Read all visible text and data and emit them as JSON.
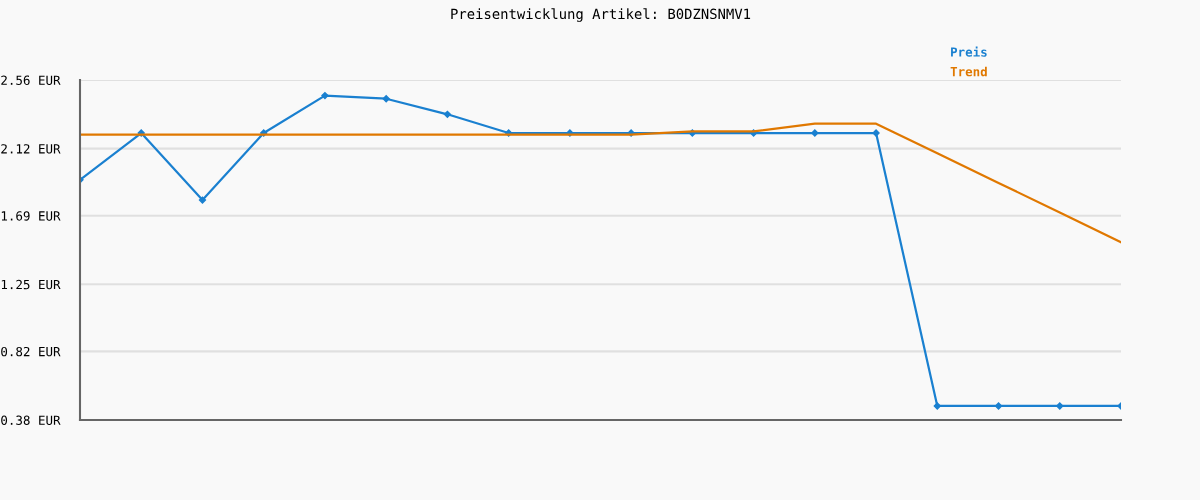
{
  "chart_data": {
    "type": "line",
    "title": "Preisentwicklung Artikel: B0DZNSNMV1",
    "categories": [
      null,
      null,
      null,
      null,
      null,
      null,
      null,
      null,
      null,
      null,
      null,
      null,
      null,
      null,
      null,
      null,
      null,
      null
    ],
    "series": [
      {
        "name": "Preis",
        "color": "#1a80d0",
        "marker": "diamond",
        "values": [
          1.92,
          2.22,
          1.79,
          2.22,
          2.46,
          2.44,
          2.34,
          2.22,
          2.22,
          2.22,
          2.22,
          2.22,
          2.22,
          2.22,
          0.47,
          0.47,
          0.47,
          0.47
        ]
      },
      {
        "name": "Trend",
        "color": "#e07800",
        "marker": "none",
        "values": [
          2.21,
          2.21,
          2.21,
          2.21,
          2.21,
          2.21,
          2.21,
          2.21,
          2.21,
          2.21,
          2.23,
          2.23,
          2.28,
          2.28,
          2.09,
          1.9,
          1.71,
          1.52
        ]
      }
    ],
    "ylim": [
      0.38,
      2.56
    ],
    "yticks": [
      {
        "value": 0.38,
        "label": "0.38 EUR"
      },
      {
        "value": 0.82,
        "label": "0.82 EUR"
      },
      {
        "value": 1.25,
        "label": "1.25 EUR"
      },
      {
        "value": 1.69,
        "label": "1.69 EUR"
      },
      {
        "value": 2.12,
        "label": "2.12 EUR"
      },
      {
        "value": 2.56,
        "label": "2.56 EUR"
      }
    ],
    "grid": "y",
    "legend": "top right",
    "line_style": "solid"
  }
}
